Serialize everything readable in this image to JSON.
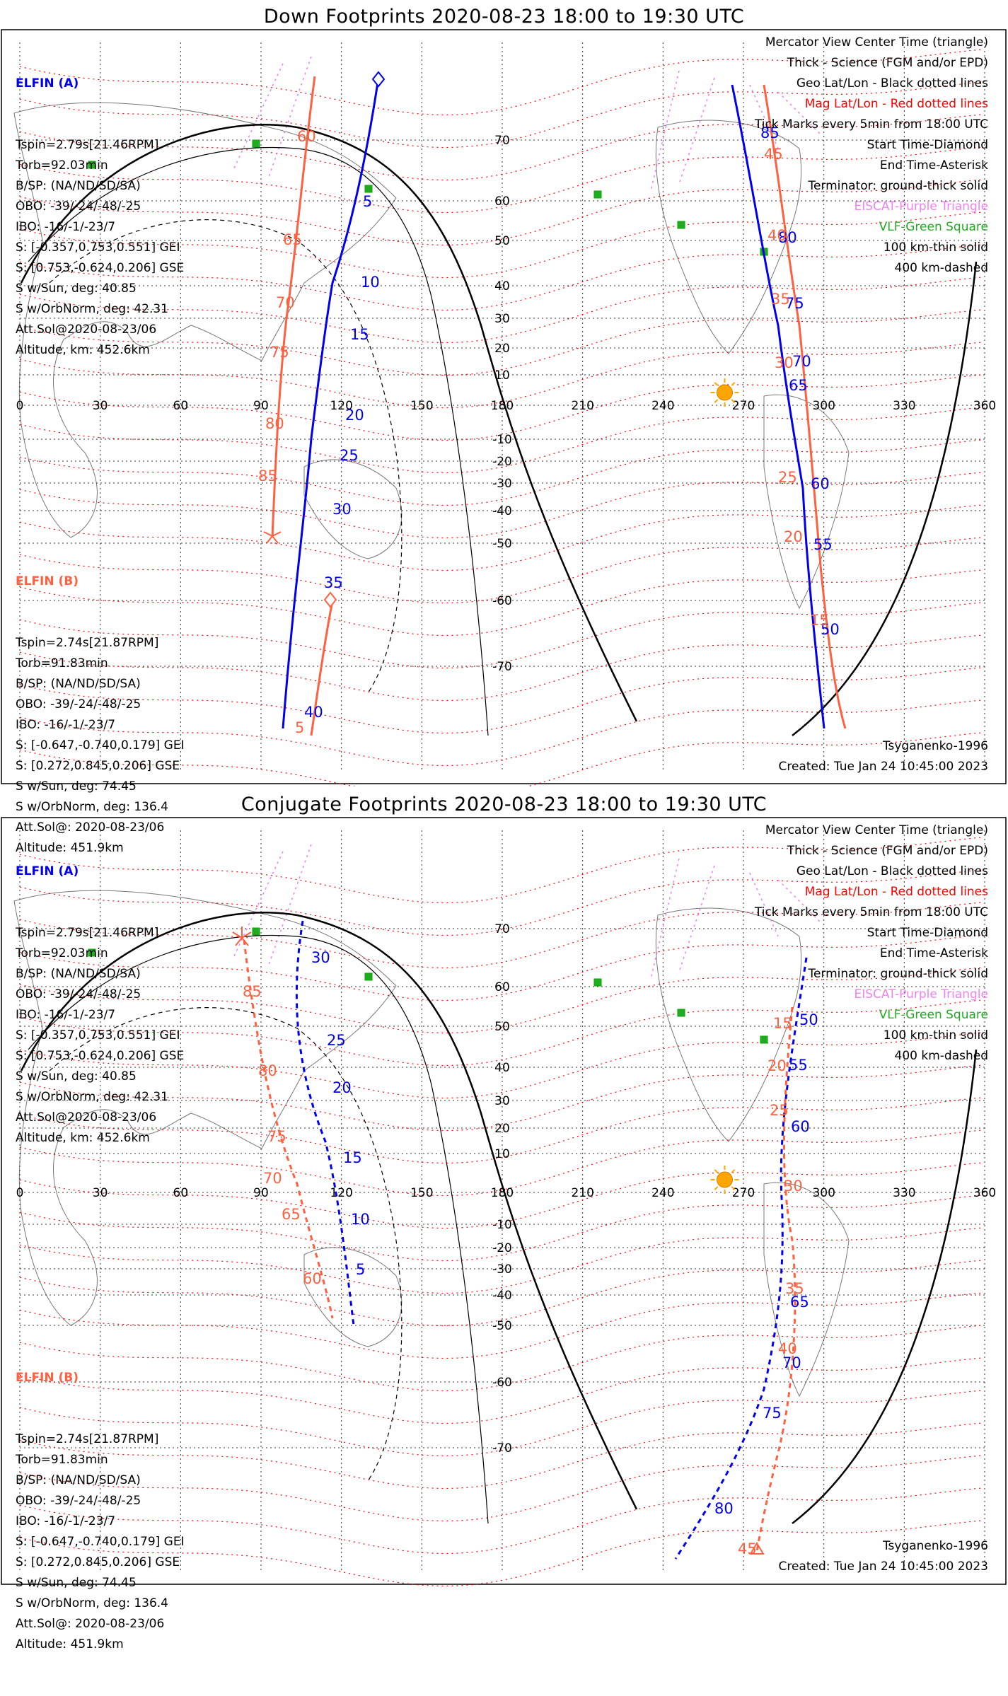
{
  "panels": [
    {
      "title": "Down Footprints 2020-08-23 18:00 to 19:30 UTC",
      "elfin_a": {
        "name": "ELFIN (A)",
        "lines": [
          "Tspin=2.79s[21.46RPM]",
          "Torb=92.03min",
          "B/SP: (NA/ND/SD/SA)",
          "OBO: -39/-24/-48/-25",
          "IBO: -16/-1/-23/7",
          "S: [-0.357,0.753,0.551] GEI",
          "S: [0.753,-0.624,0.206] GSE",
          "S w/Sun, deg: 40.85",
          "S w/OrbNorm, deg: 42.31",
          "Att.Sol@2020-08-23/06",
          "Altitude, km: 452.6km"
        ]
      },
      "elfin_b": {
        "name": "ELFIN (B)",
        "lines": [
          "Tspin=2.74s[21.87RPM]",
          "Torb=91.83min",
          "B/SP: (NA/ND/SD/SA)",
          "OBO: -39/-24/-48/-25",
          "IBO: -16/-1/-23/7",
          "S: [-0.647,-0.740,0.179] GEI",
          "S: [0.272,0.845,0.206] GSE",
          "S w/Sun, deg: 74.45",
          "S w/OrbNorm, deg: 136.4",
          "Att.Sol@: 2020-08-23/06",
          "Altitude: 451.9km"
        ]
      },
      "a_labels": [
        "5",
        "10",
        "15",
        "20",
        "25",
        "30",
        "35",
        "40",
        "85",
        "80",
        "75",
        "70",
        "65",
        "60",
        "55",
        "50"
      ],
      "b_labels": [
        "60",
        "65",
        "70",
        "75",
        "80",
        "85",
        "5",
        "45",
        "40",
        "35",
        "30",
        "25",
        "20",
        "15"
      ]
    },
    {
      "title": "Conjugate Footprints 2020-08-23 18:00 to 19:30 UTC",
      "elfin_a": {
        "name": "ELFIN (A)",
        "lines": [
          "Tspin=2.79s[21.46RPM]",
          "Torb=92.03min",
          "B/SP: (NA/ND/SD/SA)",
          "OBO: -39/-24/-48/-25",
          "IBO: -16/-1/-23/7",
          "S: [-0.357,0.753,0.551] GEI",
          "S: [0.753,-0.624,0.206] GSE",
          "S w/Sun, deg: 40.85",
          "S w/OrbNorm, deg: 42.31",
          "Att.Sol@2020-08-23/06",
          "Altitude, km: 452.6km"
        ]
      },
      "elfin_b": {
        "name": "ELFIN (B)",
        "lines": [
          "Tspin=2.74s[21.87RPM]",
          "Torb=91.83min",
          "B/SP: (NA/ND/SD/SA)",
          "OBO: -39/-24/-48/-25",
          "IBO: -16/-1/-23/7",
          "S: [-0.647,-0.740,0.179] GEI",
          "S: [0.272,0.845,0.206] GSE",
          "S w/Sun, deg: 74.45",
          "S w/OrbNorm, deg: 136.4",
          "Att.Sol@: 2020-08-23/06",
          "Altitude: 451.9km"
        ]
      },
      "a_labels": [
        "30",
        "25",
        "20",
        "15",
        "10",
        "5",
        "50",
        "55",
        "60",
        "65",
        "70",
        "75",
        "80"
      ],
      "b_labels": [
        "85",
        "80",
        "75",
        "70",
        "65",
        "60",
        "15",
        "20",
        "25",
        "30",
        "35",
        "40",
        "45"
      ]
    }
  ],
  "legend": [
    {
      "text": "Mercator View Center Time (triangle)",
      "color": "#000000"
    },
    {
      "text": "Thick - Science (FGM and/or EPD)",
      "color": "#000000"
    },
    {
      "text": "Geo Lat/Lon - Black dotted lines",
      "color": "#000000"
    },
    {
      "text": "Mag Lat/Lon - Red dotted lines",
      "color": "#ff0000"
    },
    {
      "text": "Tick Marks every 5min from 18:00 UTC",
      "color": "#000000"
    },
    {
      "text": "Start Time-Diamond",
      "color": "#000000"
    },
    {
      "text": "End Time-Asterisk",
      "color": "#000000"
    },
    {
      "text": "Terminator: ground-thick solid",
      "color": "#000000"
    },
    {
      "text": "EISCAT-Purple Triangle",
      "color": "#ee82ee"
    },
    {
      "text": "VLF-Green Square",
      "color": "#22aa22"
    },
    {
      "text": "100 km-thin solid",
      "color": "#000000"
    },
    {
      "text": "400 km-dashed",
      "color": "#000000"
    }
  ],
  "model": "Tsyganenko-1996",
  "created": "Created: Tue Jan 24 10:45:00 2023",
  "lon_ticks": [
    "0",
    "30",
    "60",
    "90",
    "120",
    "150",
    "180",
    "210",
    "240",
    "270",
    "300",
    "330",
    "360"
  ],
  "lat_ticks": [
    "70",
    "60",
    "50",
    "40",
    "30",
    "20",
    "10",
    "-10",
    "-20",
    "-30",
    "-40",
    "-50",
    "-60",
    "-70"
  ],
  "colors": {
    "elfin_a": "#0000ee",
    "elfin_b": "#ff6040",
    "mag_grid": "#ff0000",
    "eiscat": "#ee82ee",
    "vlf": "#22aa22",
    "sun": "#ffa500"
  }
}
